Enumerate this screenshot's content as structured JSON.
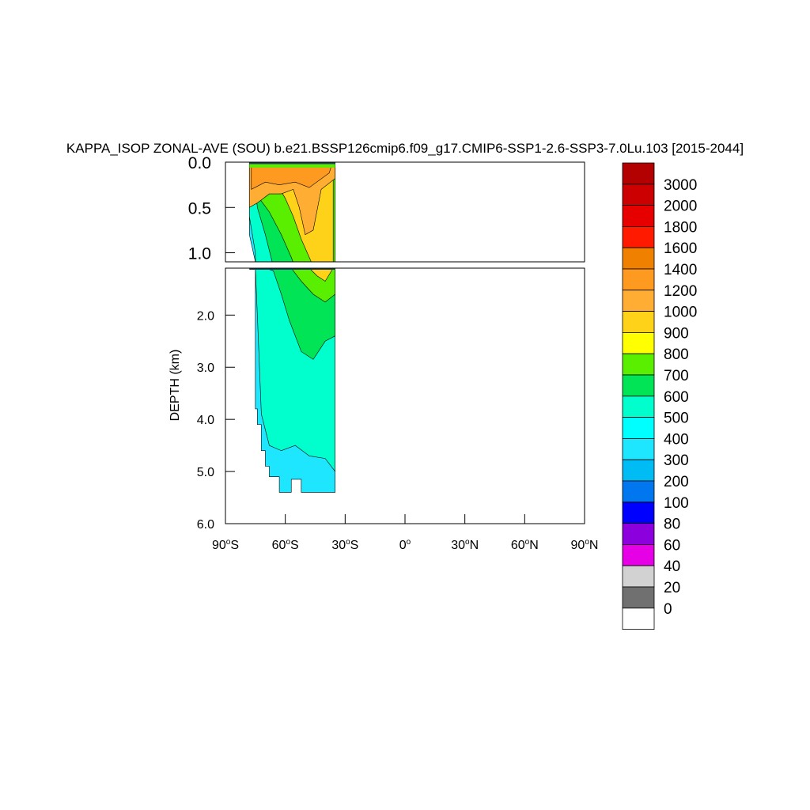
{
  "chart_data": {
    "type": "heatmap",
    "title": "KAPPA_ISOP ZONAL-AVE (SOU) b.e21.BSSP126cmip6.f09_g17.CMIP6-SSP1-2.6-SSP3-7.0Lu.103 [2015-2044]",
    "ylabel": "DEPTH (km)",
    "xlabel": "",
    "xlim": [
      -90,
      90
    ],
    "ylim": [
      0,
      6
    ],
    "x_ticks": [
      {
        "deg": "90",
        "hemi": "S"
      },
      {
        "deg": "60",
        "hemi": "S"
      },
      {
        "deg": "30",
        "hemi": "S"
      },
      {
        "deg": "0",
        "hemi": ""
      },
      {
        "deg": "30",
        "hemi": "N"
      },
      {
        "deg": "60",
        "hemi": "N"
      },
      {
        "deg": "90",
        "hemi": "N"
      }
    ],
    "y_ticks_top": [
      "0.0",
      "0.5",
      "1.0"
    ],
    "y_ticks_bottom": [
      "2.0",
      "3.0",
      "4.0",
      "5.0",
      "6.0"
    ],
    "colorbar_levels": [
      "3000",
      "2000",
      "1800",
      "1600",
      "1400",
      "1200",
      "1000",
      "900",
      "800",
      "700",
      "600",
      "500",
      "400",
      "300",
      "200",
      "100",
      "80",
      "60",
      "40",
      "20",
      "0"
    ],
    "colorbar_colors": [
      "#b30000",
      "#cc0000",
      "#e60000",
      "#ff1a00",
      "#f08000",
      "#ff9a20",
      "#ffad33",
      "#ffd21a",
      "#ffff00",
      "#5aee00",
      "#00e455",
      "#00ffcc",
      "#00ffff",
      "#1ee6ff",
      "#00bcf5",
      "#0077ee",
      "#0000ff",
      "#8c00dd",
      "#e600e6",
      "#d2d2d2",
      "#707070",
      "#ffffff"
    ],
    "data_extent": {
      "lat_min": -78,
      "lat_max": -35,
      "depth_max_km": 5.4
    },
    "fields": [
      {
        "level": "500-600",
        "color": "#00ffcc",
        "region": "deep ocean 60S-35S, below ~1.5 km"
      },
      {
        "level": "600-700",
        "color": "#00e455",
        "region": "mid-depth plume 60S-35S, 0.3-2.8 km"
      },
      {
        "level": "700-800",
        "color": "#5aee00",
        "region": "around core, 0.3-1.8 km"
      },
      {
        "level": "800-1000",
        "color": "#ffd21a",
        "region": "core near 45S, 0.2-1.3 km"
      },
      {
        "level": "1000-1400",
        "color": "#ffad33",
        "region": "upper 0.3 km, 78S-35S"
      },
      {
        "level": "300-400",
        "color": "#1ee6ff",
        "region": "abyssal 75S-35S, below ~4.5 km"
      }
    ]
  }
}
